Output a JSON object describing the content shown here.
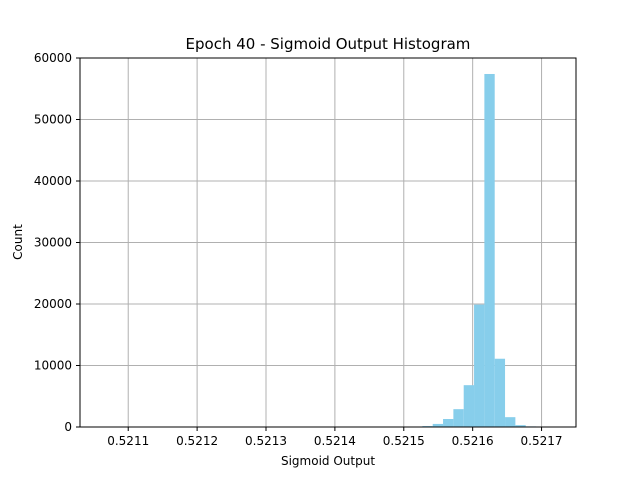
{
  "chart_data": {
    "type": "bar",
    "title": "Epoch 40 - Sigmoid Output Histogram",
    "xlabel": "Sigmoid Output",
    "ylabel": "Count",
    "xlim": [
      0.52103,
      0.52175
    ],
    "ylim": [
      0,
      60000
    ],
    "xticks": [
      0.5211,
      0.5212,
      0.5213,
      0.5214,
      0.5215,
      0.5216,
      0.5217
    ],
    "xtick_labels": [
      "0.5211",
      "0.5212",
      "0.5213",
      "0.5214",
      "0.5215",
      "0.5216",
      "0.5217"
    ],
    "yticks": [
      0,
      10000,
      20000,
      30000,
      40000,
      50000,
      60000
    ],
    "ytick_labels": [
      "0",
      "10000",
      "20000",
      "30000",
      "40000",
      "50000",
      "60000"
    ],
    "grid": true,
    "bar_color": "#87ceeb",
    "bins": [
      {
        "x0": 0.521527,
        "x1": 0.521542,
        "count": 150
      },
      {
        "x0": 0.521542,
        "x1": 0.521557,
        "count": 500
      },
      {
        "x0": 0.521557,
        "x1": 0.521572,
        "count": 1300
      },
      {
        "x0": 0.521572,
        "x1": 0.521587,
        "count": 2900
      },
      {
        "x0": 0.521587,
        "x1": 0.521602,
        "count": 6800
      },
      {
        "x0": 0.521602,
        "x1": 0.521617,
        "count": 19900
      },
      {
        "x0": 0.521617,
        "x1": 0.521632,
        "count": 57400
      },
      {
        "x0": 0.521632,
        "x1": 0.521647,
        "count": 11100
      },
      {
        "x0": 0.521647,
        "x1": 0.521662,
        "count": 1600
      },
      {
        "x0": 0.521662,
        "x1": 0.521677,
        "count": 300
      },
      {
        "x0": 0.521677,
        "x1": 0.521692,
        "count": 100
      }
    ]
  }
}
